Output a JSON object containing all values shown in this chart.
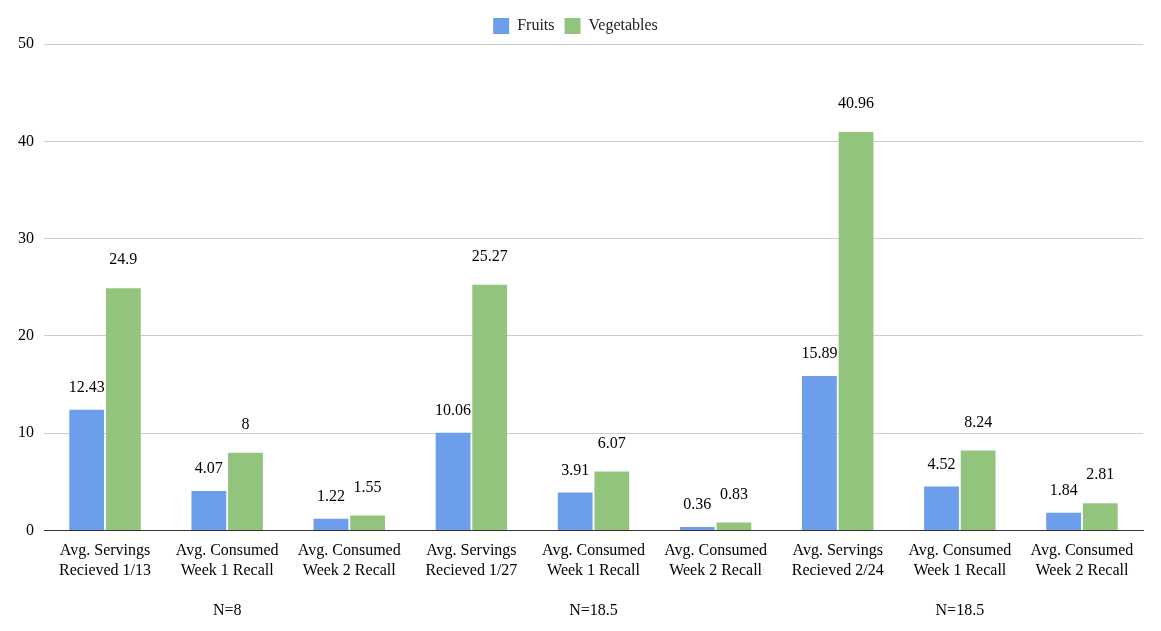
{
  "chart_data": {
    "type": "bar",
    "categories": [
      "Avg. Servings Recieved 1/13",
      "Avg. Consumed Week 1 Recall",
      "Avg. Consumed Week 2 Recall",
      "Avg. Servings Recieved 1/27",
      "Avg. Consumed Week 1 Recall",
      "Avg. Consumed Week 2 Recall",
      "Avg. Servings Recieved 2/24",
      "Avg. Consumed Week 1 Recall",
      "Avg. Consumed Week 2 Recall"
    ],
    "series": [
      {
        "name": "Fruits",
        "color": "#6d9eeb",
        "values": [
          12.43,
          4.07,
          1.22,
          10.06,
          3.91,
          0.36,
          15.89,
          4.52,
          1.84
        ]
      },
      {
        "name": "Vegetables",
        "color": "#93c47d",
        "values": [
          24.9,
          8,
          1.55,
          25.27,
          6.07,
          0.83,
          40.96,
          8.24,
          2.81
        ]
      }
    ],
    "ylim": [
      0,
      50
    ],
    "yticks": [
      0,
      10,
      20,
      30,
      40,
      50
    ],
    "grid": "y",
    "legend": "top",
    "data_labels": true,
    "annotations": [
      "N=8",
      "N=18.5",
      "N=18.5"
    ]
  }
}
